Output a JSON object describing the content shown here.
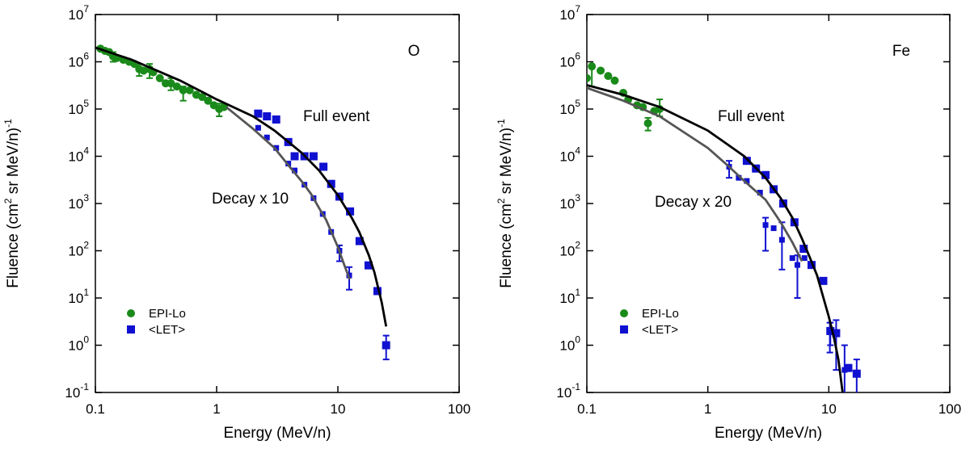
{
  "chart_data": [
    {
      "type": "scatter",
      "panel_label": "O",
      "xlabel": "Energy (MeV/n)",
      "ylabel": [
        "Fluence (cm",
        "2",
        " sr MeV/n)",
        "-1"
      ],
      "log_x": true,
      "log_y": true,
      "xlim": [
        0.1,
        100
      ],
      "ylim": [
        0.1,
        10000000
      ],
      "xticks": [
        0.1,
        1,
        10,
        100
      ],
      "yticks": [
        {
          "value": 0.1,
          "label": "10",
          "exponent": "-1"
        },
        {
          "value": 1,
          "label": "10",
          "exponent": "0"
        },
        {
          "value": 10,
          "label": "10",
          "exponent": "1"
        },
        {
          "value": 100,
          "label": "10",
          "exponent": "2"
        },
        {
          "value": 1000,
          "label": "10",
          "exponent": "3"
        },
        {
          "value": 10000,
          "label": "10",
          "exponent": "4"
        },
        {
          "value": 100000,
          "label": "10",
          "exponent": "5"
        },
        {
          "value": 1000000,
          "label": "10",
          "exponent": "6"
        },
        {
          "value": 10000000,
          "label": "10",
          "exponent": "7"
        }
      ],
      "series": [
        {
          "name": "EPI-Lo",
          "color": "#1a8a1a",
          "marker": "circle",
          "legend": true,
          "x": [
            0.11,
            0.12,
            0.13,
            0.14,
            0.15,
            0.17,
            0.19,
            0.21,
            0.23,
            0.25,
            0.28,
            0.3,
            0.34,
            0.38,
            0.42,
            0.47,
            0.53,
            0.6,
            0.68,
            0.76,
            0.85,
            0.95,
            1.05,
            1.15
          ],
          "values": [
            1900000,
            1700000,
            1600000,
            1300000,
            1200000,
            1100000,
            1000000,
            900000,
            700000,
            650000,
            700000,
            600000,
            450000,
            350000,
            350000,
            300000,
            250000,
            250000,
            200000,
            180000,
            150000,
            120000,
            100000,
            110000
          ],
          "errors": [
            null,
            null,
            null,
            [
              1000000,
              1600000
            ],
            null,
            null,
            null,
            null,
            [
              500000,
              900000
            ],
            null,
            [
              450000,
              900000
            ],
            null,
            null,
            null,
            [
              250000,
              450000
            ],
            null,
            [
              150000,
              300000
            ],
            null,
            null,
            null,
            null,
            null,
            [
              70000,
              130000
            ],
            null
          ]
        },
        {
          "name": "<LET>",
          "color": "#1010d0",
          "marker": "square",
          "legend": true,
          "x": [
            2.2,
            2.6,
            3.1,
            3.9,
            4.4,
            5.3,
            6.3,
            7.6,
            8.8,
            10.3,
            12.6,
            15.1,
            17.9,
            21.2,
            25
          ],
          "values": [
            80000,
            70000,
            60000,
            20000,
            10000,
            10000,
            10000,
            6000,
            2600,
            1400,
            680,
            160,
            49,
            14,
            1
          ],
          "errors": [
            null,
            null,
            null,
            null,
            null,
            null,
            null,
            null,
            null,
            null,
            null,
            null,
            null,
            null,
            [
              0.5,
              1.6
            ]
          ]
        },
        {
          "color": "#1010d0",
          "marker": "small-square",
          "legend": false,
          "x": [
            2.2,
            2.6,
            3.1,
            3.9,
            4.4,
            5.3,
            6.3,
            7.5,
            8.8,
            10.3,
            12.4
          ],
          "values": [
            40000,
            25000,
            15000,
            7000,
            5000,
            2500,
            1300,
            600,
            250,
            100,
            30
          ],
          "errors": [
            null,
            null,
            null,
            null,
            null,
            null,
            null,
            null,
            null,
            [
              60,
              130
            ],
            [
              15,
              45
            ]
          ]
        },
        {
          "name": "Full event",
          "color": "#000000",
          "line": true,
          "label_color": "#000000",
          "x": [
            0.1,
            0.2,
            0.5,
            1,
            2,
            3,
            5,
            7,
            10,
            13,
            15,
            18,
            20,
            23,
            25
          ],
          "values": [
            2000000,
            1100000,
            400000,
            160000,
            70000,
            35000,
            12000,
            5000,
            1500,
            500,
            250,
            80,
            35,
            8,
            2.5
          ]
        },
        {
          "name": "Decay x 10",
          "color": "#555555",
          "line": true,
          "label_color": "#555555",
          "x": [
            1.2,
            2,
            3,
            4,
            5,
            6,
            7,
            8,
            10,
            11,
            12.5
          ],
          "values": [
            110000,
            38000,
            15000,
            6000,
            3000,
            1600,
            800,
            450,
            120,
            60,
            25
          ]
        }
      ]
    },
    {
      "type": "scatter",
      "panel_label": "Fe",
      "xlabel": "Energy (MeV/n)",
      "ylabel": [
        "Fluence (cm",
        "2",
        " sr MeV/n)",
        "-1"
      ],
      "log_x": true,
      "log_y": true,
      "xlim": [
        0.1,
        100
      ],
      "ylim": [
        0.1,
        10000000
      ],
      "xticks": [
        0.1,
        1,
        10,
        100
      ],
      "yticks": [
        {
          "value": 0.1,
          "label": "10",
          "exponent": "-1"
        },
        {
          "value": 1,
          "label": "10",
          "exponent": "0"
        },
        {
          "value": 10,
          "label": "10",
          "exponent": "1"
        },
        {
          "value": 100,
          "label": "10",
          "exponent": "2"
        },
        {
          "value": 1000,
          "label": "10",
          "exponent": "3"
        },
        {
          "value": 10000,
          "label": "10",
          "exponent": "4"
        },
        {
          "value": 100000,
          "label": "10",
          "exponent": "5"
        },
        {
          "value": 1000000,
          "label": "10",
          "exponent": "6"
        },
        {
          "value": 10000000,
          "label": "10",
          "exponent": "7"
        }
      ],
      "series": [
        {
          "name": "EPI-Lo",
          "color": "#1a8a1a",
          "marker": "circle",
          "legend": true,
          "x": [
            0.1,
            0.11,
            0.13,
            0.15,
            0.17,
            0.2,
            0.22,
            0.26,
            0.29,
            0.32,
            0.36,
            0.4
          ],
          "values": [
            450000,
            800000,
            650000,
            500000,
            400000,
            220000,
            160000,
            120000,
            110000,
            50000,
            90000,
            100000
          ],
          "errors": [
            null,
            [
              300000,
              800000
            ],
            null,
            null,
            null,
            null,
            null,
            null,
            null,
            [
              35000,
              65000
            ],
            null,
            [
              70000,
              160000
            ]
          ]
        },
        {
          "name": "<LET>",
          "color": "#1010d0",
          "marker": "square",
          "legend": true,
          "x": [
            2.1,
            2.5,
            3.0,
            3.5,
            4.2,
            5.2,
            6.2,
            7.2,
            9.0,
            10.3,
            11.5,
            14.5,
            17
          ],
          "values": [
            8000,
            5500,
            4000,
            2000,
            1000,
            400,
            110,
            50,
            23,
            2,
            1.8,
            0.33,
            0.25
          ],
          "errors": [
            null,
            null,
            null,
            null,
            null,
            null,
            null,
            null,
            null,
            [
              1,
              3
            ],
            [
              0.3,
              3.4
            ],
            null,
            [
              0.06,
              0.5
            ]
          ]
        },
        {
          "color": "#1010d0",
          "marker": "small-square",
          "legend": false,
          "x": [
            1.5,
            1.8,
            2.1,
            2.7,
            3.0,
            3.5,
            4.1,
            5.0,
            5.5,
            6.3,
            10.2,
            13.5
          ],
          "values": [
            6000,
            3500,
            3000,
            1700,
            350,
            300,
            170,
            70,
            50,
            70,
            1.9,
            0.3
          ],
          "errors": [
            [
              3500,
              8000
            ],
            null,
            null,
            null,
            [
              100,
              500
            ],
            null,
            [
              40,
              400
            ],
            null,
            [
              10,
              80
            ],
            null,
            [
              0.7,
              3
            ],
            [
              0.08,
              1
            ]
          ]
        },
        {
          "name": "Full event",
          "color": "#000000",
          "line": true,
          "label_color": "#000000",
          "x": [
            0.1,
            0.2,
            0.4,
            1,
            2,
            3,
            4,
            5,
            6,
            7,
            8,
            10,
            11,
            12,
            13
          ],
          "values": [
            320000,
            200000,
            110000,
            35000,
            10000,
            3500,
            1300,
            500,
            180,
            70,
            30,
            4,
            1.5,
            0.5,
            0.1
          ]
        },
        {
          "name": "Decay x 20",
          "color": "#555555",
          "line": true,
          "label_color": "#555555",
          "x": [
            0.1,
            0.2,
            0.4,
            1,
            1.5,
            2,
            3,
            4,
            5,
            6
          ],
          "values": [
            280000,
            150000,
            70000,
            15000,
            6000,
            3000,
            1200,
            400,
            150,
            60
          ]
        }
      ]
    }
  ]
}
